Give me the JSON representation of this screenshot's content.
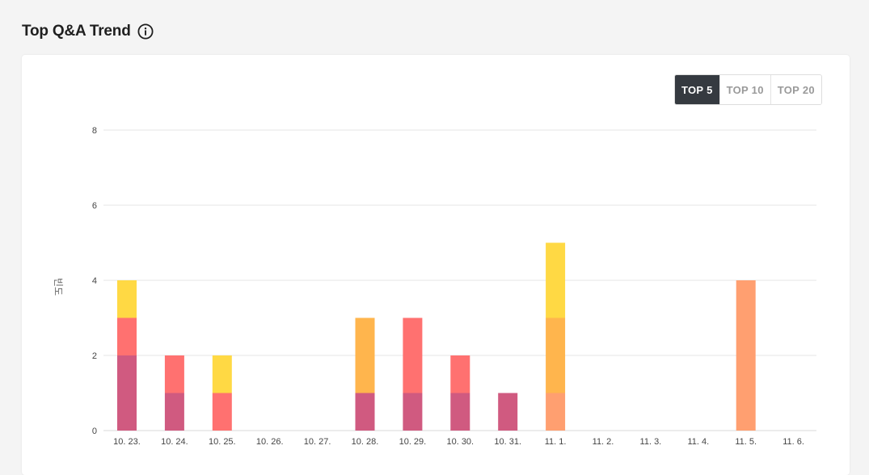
{
  "header": {
    "title": "Top Q&A Trend",
    "info_icon": "info-circle-icon"
  },
  "toggle": {
    "options": [
      "TOP 5",
      "TOP 10",
      "TOP 20"
    ],
    "selected": "TOP 5"
  },
  "chart_data": {
    "type": "bar",
    "stacked": true,
    "grid": true,
    "legend": "none",
    "ylabel": "빈도",
    "xlabel": "",
    "ylim": [
      0,
      8
    ],
    "yticks": [
      0,
      2,
      4,
      6,
      8
    ],
    "categories": [
      "10. 23.",
      "10. 24.",
      "10. 25.",
      "10. 26.",
      "10. 27.",
      "10. 28.",
      "10. 29.",
      "10. 30.",
      "10. 31.",
      "11. 1.",
      "11. 2.",
      "11. 3.",
      "11. 4.",
      "11. 5.",
      "11. 6."
    ],
    "series": [
      {
        "color": "#d05a80",
        "values": [
          2,
          1,
          0,
          0,
          0,
          1,
          1,
          1,
          1,
          0,
          0,
          0,
          0,
          0,
          0
        ]
      },
      {
        "color": "#ff9f70",
        "values": [
          0,
          0,
          0,
          0,
          0,
          0,
          0,
          0,
          0,
          1,
          0,
          0,
          0,
          4,
          0
        ]
      },
      {
        "color": "#ff7170",
        "values": [
          1,
          1,
          1,
          0,
          0,
          0,
          2,
          1,
          0,
          0,
          0,
          0,
          0,
          0,
          0
        ]
      },
      {
        "color": "#ffb54d",
        "values": [
          0,
          0,
          0,
          0,
          0,
          2,
          0,
          0,
          0,
          2,
          0,
          0,
          0,
          0,
          0
        ]
      },
      {
        "color": "#ffd944",
        "values": [
          1,
          0,
          1,
          0,
          0,
          0,
          0,
          0,
          0,
          2,
          0,
          0,
          0,
          0,
          0
        ]
      }
    ]
  }
}
